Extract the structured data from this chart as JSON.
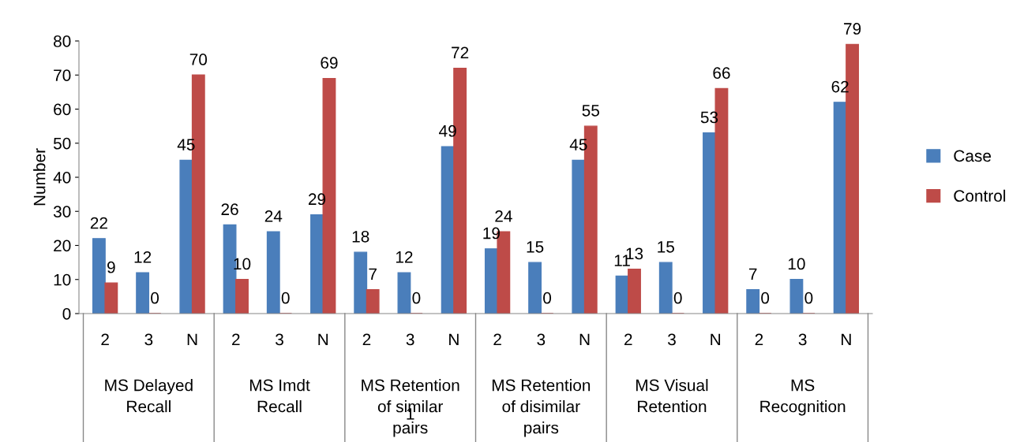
{
  "chart_data": {
    "type": "bar",
    "ylabel": "Number",
    "categories": [
      "2",
      "3",
      "N",
      "2",
      "3",
      "N",
      "2",
      "3",
      "N",
      "2",
      "3",
      "N",
      "2",
      "3",
      "N",
      "2",
      "3",
      "N"
    ],
    "series": [
      {
        "name": "Case",
        "color": "#4a7ebb",
        "values": [
          22,
          12,
          45,
          26,
          24,
          29,
          18,
          12,
          49,
          19,
          15,
          45,
          11,
          15,
          53,
          7,
          10,
          62
        ]
      },
      {
        "name": "Control",
        "color": "#be4b48",
        "values": [
          9,
          0,
          70,
          10,
          0,
          69,
          7,
          0,
          72,
          24,
          0,
          55,
          13,
          0,
          66,
          0,
          0,
          79
        ]
      }
    ],
    "annotations": [
      "MS Delayed\nRecall",
      "MS Imdt\nRecall",
      "MS Retention\nof similar\npairs",
      "MS Retention\nof disimilar\npairs",
      "MS Visual\nRetention",
      "MS\nRecognition",
      "1"
    ],
    "ylim": [
      0,
      80
    ],
    "yticks": [
      0,
      10,
      20,
      30,
      40,
      50,
      60,
      70,
      80
    ],
    "data_labels": true,
    "grid": false,
    "legend": "right"
  }
}
